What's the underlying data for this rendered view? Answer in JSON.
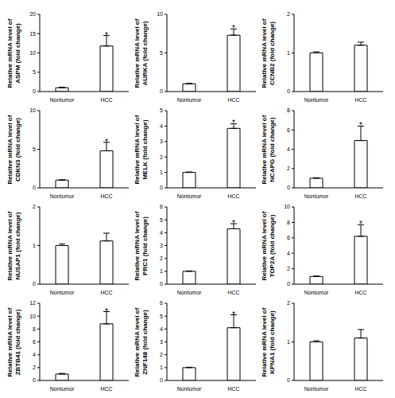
{
  "chart_data": [
    {
      "type": "bar",
      "ylabel": "Relative mRNA level of ASPM (fold change)",
      "categories": [
        "Nontumor",
        "HCC"
      ],
      "values": [
        1,
        11.8
      ],
      "errors": [
        0.1,
        2.7
      ],
      "ylim": [
        0,
        20
      ],
      "yticks": [
        0,
        5,
        10,
        15,
        20
      ],
      "color": "#ffffff",
      "annotation": "*"
    },
    {
      "type": "bar",
      "ylabel": "Relative mRNA level of AURKA (fold change)",
      "categories": [
        "Nontumor",
        "HCC"
      ],
      "values": [
        1,
        7.3
      ],
      "errors": [
        0.05,
        0.8
      ],
      "ylim": [
        0,
        10
      ],
      "yticks": [
        0,
        5,
        10
      ],
      "color": "#ffffff",
      "annotation": "*"
    },
    {
      "type": "bar",
      "ylabel": "Relative mRNA level of CCNB2 (fold change)",
      "categories": [
        "Nontumor",
        "HCC"
      ],
      "values": [
        1,
        1.2
      ],
      "errors": [
        0.03,
        0.08
      ],
      "ylim": [
        0,
        2
      ],
      "yticks": [
        0,
        1,
        2
      ],
      "color": "#ffffff"
    },
    {
      "type": "bar",
      "ylabel": "Relative mRNA level of CDKN3 (fold change)",
      "categories": [
        "Nontumor",
        "HCC"
      ],
      "values": [
        1,
        4.8
      ],
      "errors": [
        0.05,
        1.1
      ],
      "ylim": [
        0,
        10
      ],
      "yticks": [
        0,
        5,
        10
      ],
      "color": "#ffffff",
      "annotation": "*"
    },
    {
      "type": "bar",
      "ylabel": "Relative mRNA level of MELK (fold change)",
      "categories": [
        "Nontumor",
        "HCC"
      ],
      "values": [
        1,
        3.85
      ],
      "errors": [
        0.03,
        0.3
      ],
      "ylim": [
        0,
        5
      ],
      "yticks": [
        0,
        1,
        2,
        3,
        4,
        5
      ],
      "color": "#ffffff",
      "annotation": "*"
    },
    {
      "type": "bar",
      "ylabel": "Relative mRNA level of NCAPG (fold change)",
      "categories": [
        "Nontumor",
        "HCC"
      ],
      "values": [
        1,
        4.9
      ],
      "errors": [
        0.05,
        1.5
      ],
      "ylim": [
        0,
        8
      ],
      "yticks": [
        0,
        2,
        4,
        6,
        8
      ],
      "color": "#ffffff",
      "annotation": "*"
    },
    {
      "type": "bar",
      "ylabel": "Relative mRNA level of NUSAP1 (fold change)",
      "categories": [
        "Nontumor",
        "HCC"
      ],
      "values": [
        1,
        1.12
      ],
      "errors": [
        0.04,
        0.2
      ],
      "ylim": [
        0,
        2
      ],
      "yticks": [
        0,
        1,
        2
      ],
      "color": "#ffffff"
    },
    {
      "type": "bar",
      "ylabel": "Relative mRNA level of PRC1 (fold change)",
      "categories": [
        "Nontumor",
        "HCC"
      ],
      "values": [
        1,
        4.3
      ],
      "errors": [
        0.03,
        0.4
      ],
      "ylim": [
        0,
        6
      ],
      "yticks": [
        0,
        1,
        2,
        3,
        4,
        5,
        6
      ],
      "color": "#ffffff",
      "annotation": "*"
    },
    {
      "type": "bar",
      "ylabel": "Relative mRNA level of TOP2A (fold change)",
      "categories": [
        "Nontumor",
        "HCC"
      ],
      "values": [
        1,
        6.2
      ],
      "errors": [
        0.05,
        1.5
      ],
      "ylim": [
        0,
        10
      ],
      "yticks": [
        0,
        2,
        4,
        6,
        8,
        10
      ],
      "color": "#ffffff",
      "annotation": "*"
    },
    {
      "type": "bar",
      "ylabel": "Relative mRNA level of ZBTB41 (fold change)",
      "categories": [
        "Nontumor",
        "HCC"
      ],
      "values": [
        1,
        8.8
      ],
      "errors": [
        0.1,
        1.9
      ],
      "ylim": [
        0,
        12
      ],
      "yticks": [
        0,
        2,
        4,
        6,
        8,
        10,
        12
      ],
      "color": "#ffffff",
      "annotation": "*"
    },
    {
      "type": "bar",
      "ylabel": "Relative mRNA level of ZNF148 (fold change)",
      "categories": [
        "Nontumor",
        "HCC"
      ],
      "values": [
        1,
        4.1
      ],
      "errors": [
        0.03,
        1.0
      ],
      "ylim": [
        0,
        6
      ],
      "yticks": [
        0,
        1,
        2,
        3,
        4,
        5,
        6
      ],
      "color": "#ffffff",
      "annotation": "*"
    },
    {
      "type": "bar",
      "ylabel": "Relative mRNA level of KPNA1 (fold change)",
      "categories": [
        "Nontumor",
        "HCC"
      ],
      "values": [
        1,
        1.1
      ],
      "errors": [
        0.03,
        0.22
      ],
      "ylim": [
        0,
        2
      ],
      "yticks": [
        0,
        1,
        2
      ],
      "color": "#ffffff"
    }
  ]
}
